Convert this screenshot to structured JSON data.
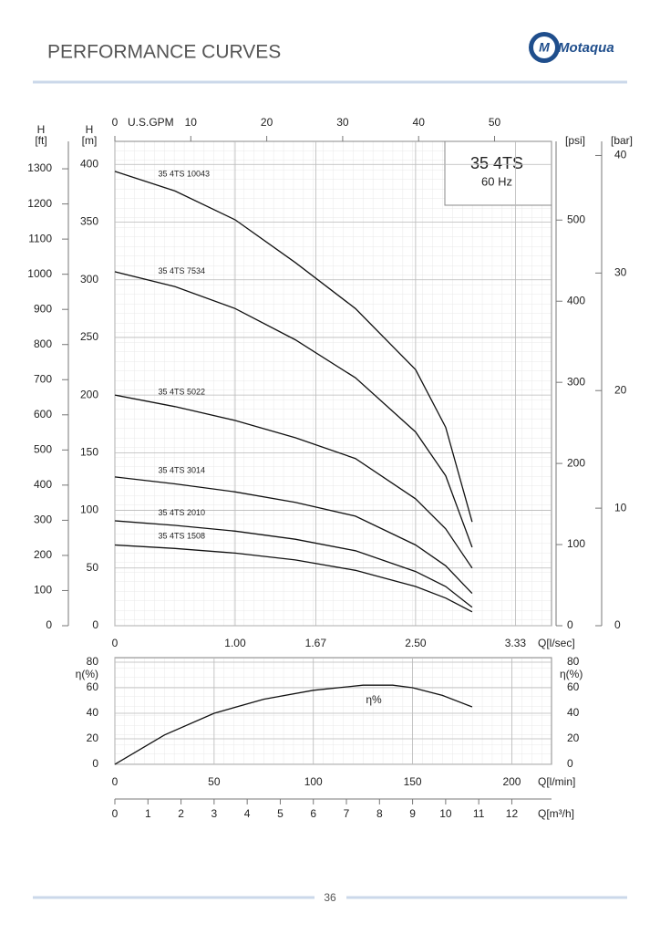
{
  "header": {
    "title": "PERFORMANCE CURVES",
    "logo": "Motaqua"
  },
  "chart_data": [
    {
      "type": "line",
      "model": "35 4TS",
      "frequency": "60 Hz",
      "color": "#111111",
      "grid": true,
      "x": [
        0,
        0.5,
        1.0,
        1.5,
        2.0,
        2.5,
        2.75,
        2.97
      ],
      "xlim": [
        0,
        3.63
      ],
      "xticks": [
        0,
        {
          "value": 1,
          "label": "1.00"
        },
        1.67,
        {
          "value": 2.5,
          "label": "2.50"
        },
        3.33
      ],
      "xlabel": "Q[l/sec]",
      "x2lim": [
        0,
        57.5
      ],
      "x2ticks": [
        0,
        10,
        20,
        30,
        40,
        50
      ],
      "x2label": "U.S.GPM",
      "ylim": [
        0,
        420
      ],
      "yticks": [
        0,
        50,
        100,
        150,
        200,
        250,
        300,
        350,
        400
      ],
      "ylabel": [
        "H",
        "[m]"
      ],
      "y2lim": [
        0,
        1378
      ],
      "y2ticks": [
        0,
        100,
        200,
        300,
        400,
        500,
        600,
        700,
        800,
        900,
        1000,
        1100,
        1200,
        1300
      ],
      "y2label": [
        "H",
        "[ft]"
      ],
      "y3lim": [
        0,
        597
      ],
      "y3ticks": [
        0,
        100,
        200,
        300,
        400,
        500
      ],
      "y3label": "[psi]",
      "y4lim": [
        0,
        41.2
      ],
      "y4ticks": [
        0,
        10,
        20,
        30,
        40
      ],
      "y4label": "[bar]",
      "series": [
        {
          "name": "35 4TS 10043",
          "values": [
            394,
            377,
            352,
            315,
            275,
            222,
            172,
            90
          ]
        },
        {
          "name": "35 4TS 7534",
          "values": [
            307,
            294,
            275,
            248,
            215,
            168,
            130,
            68
          ]
        },
        {
          "name": "35 4TS 5022",
          "values": [
            200,
            190,
            178,
            163,
            145,
            110,
            84,
            50
          ]
        },
        {
          "name": "35 4TS 3014",
          "values": [
            129,
            123,
            116,
            107,
            95,
            70,
            52,
            28
          ]
        },
        {
          "name": "35 4TS 2010",
          "values": [
            91,
            87,
            82,
            75,
            65,
            47,
            34,
            16
          ]
        },
        {
          "name": "35 4TS 1508",
          "values": [
            70,
            67,
            63,
            57,
            48,
            34,
            24,
            12
          ]
        }
      ]
    },
    {
      "type": "line",
      "color": "#111111",
      "grid": true,
      "x": [
        0,
        25,
        50,
        75,
        100,
        125,
        140,
        150,
        165,
        180
      ],
      "xlim": [
        0,
        220
      ],
      "xticks": [
        0,
        50,
        100,
        150,
        200
      ],
      "xlabel": "Q[l/min]",
      "x2lim": [
        0,
        13.2
      ],
      "x2ticks": [
        0,
        1,
        2,
        3,
        4,
        5,
        6,
        7,
        8,
        9,
        10,
        11,
        12
      ],
      "x2label": "Q[m³/h]",
      "ylim": [
        0,
        80
      ],
      "yticks": [
        0,
        20,
        40,
        60,
        80
      ],
      "ylabel": "η(%)",
      "series": [
        {
          "name": "η%",
          "values": [
            0,
            23,
            40,
            51,
            58,
            62,
            62,
            60,
            54,
            45
          ]
        }
      ]
    }
  ],
  "footer": {
    "page": 36
  }
}
